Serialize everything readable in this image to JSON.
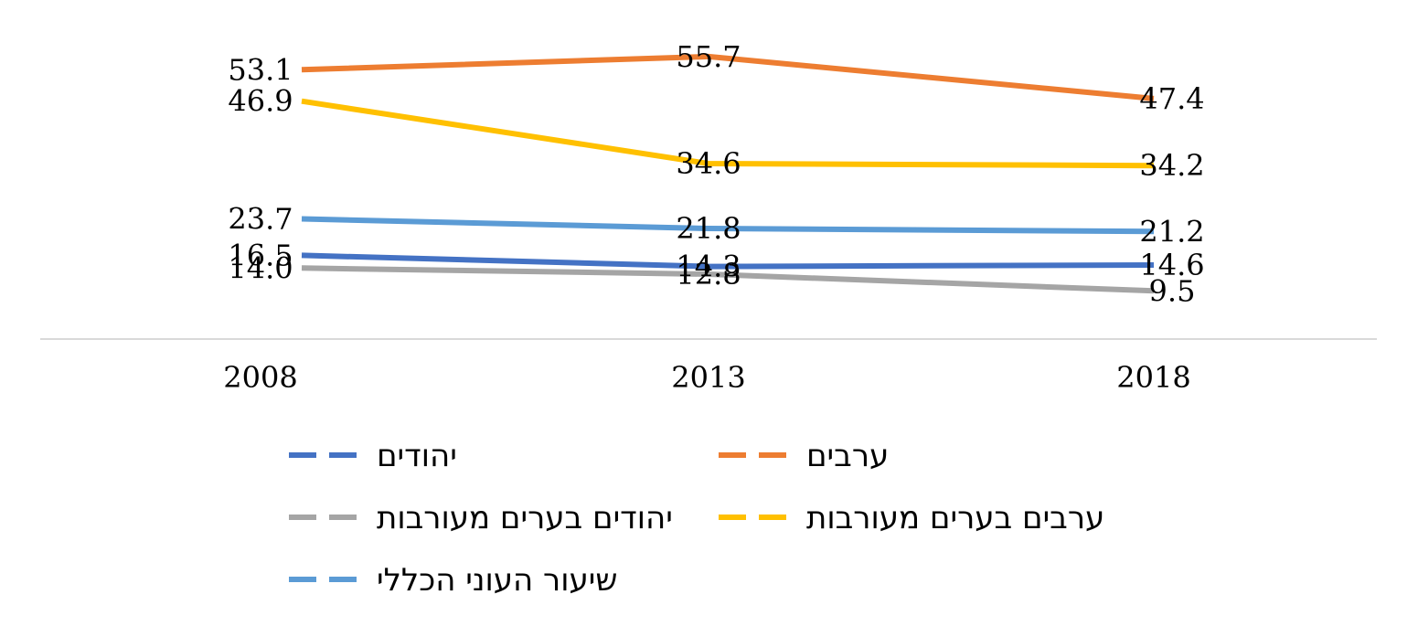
{
  "chart_data": {
    "type": "line",
    "x": [
      "2008",
      "2013",
      "2018"
    ],
    "series": [
      {
        "name": "ערבים",
        "values": [
          53.1,
          55.7,
          47.4
        ],
        "color": "#ED7D31"
      },
      {
        "name": "ערבים בערים מעורבות",
        "values": [
          46.9,
          34.6,
          34.2
        ],
        "color": "#FFC000"
      },
      {
        "name": "שיעור העוני הכללי",
        "values": [
          23.7,
          21.8,
          21.2
        ],
        "color": "#5B9BD5"
      },
      {
        "name": "יהודים",
        "values": [
          16.5,
          14.3,
          14.6
        ],
        "color": "#4472C4"
      },
      {
        "name": "יהודים בערים מעורבות",
        "values": [
          14.0,
          12.8,
          9.5
        ],
        "color": "#A5A5A5"
      }
    ],
    "value_labels": [
      [
        "53.1",
        "55.7",
        "47.4"
      ],
      [
        "46.9",
        "34.6",
        "34.2"
      ],
      [
        "23.7",
        "21.8",
        "21.2"
      ],
      [
        "16.5",
        "14.3",
        "14.6"
      ],
      [
        "14.0",
        "12.8",
        "9.5"
      ]
    ],
    "legend_order": [
      3,
      0,
      4,
      1,
      2
    ],
    "title": "",
    "xlabel": "",
    "ylabel": "",
    "ylim": [
      0,
      65
    ],
    "grid": false,
    "legend_position": "bottom"
  }
}
